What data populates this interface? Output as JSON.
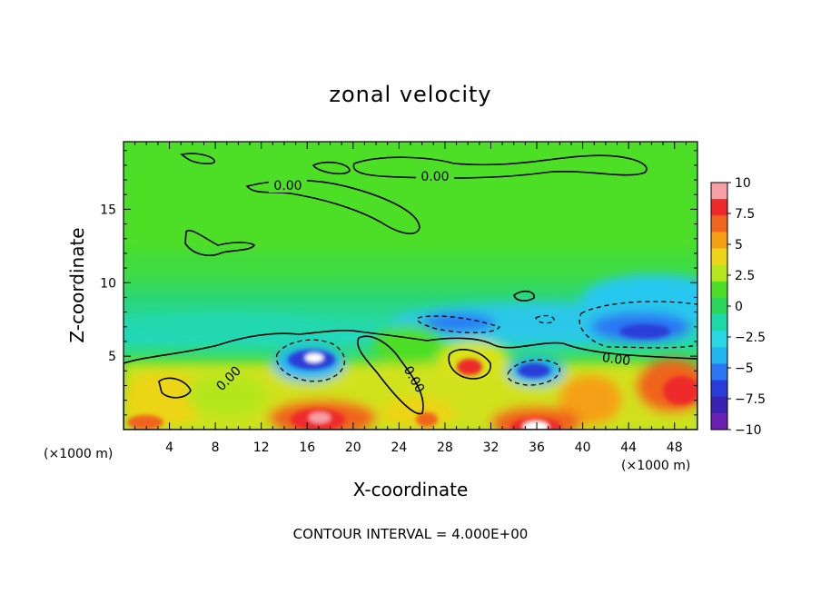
{
  "chart_data": {
    "type": "heatmap",
    "title": "zonal velocity",
    "xlabel": "X-coordinate",
    "ylabel": "Z-coordinate",
    "x_unit_label": "(×1000 m)",
    "x_ticks": [
      4,
      8,
      12,
      16,
      20,
      24,
      28,
      32,
      36,
      40,
      44,
      48
    ],
    "y_ticks": [
      5,
      10,
      15
    ],
    "xlim": [
      0,
      50
    ],
    "ylim": [
      0,
      19.6
    ],
    "colorbar": {
      "ticks": [
        "10",
        "7.5",
        "5",
        "2.5",
        "0",
        "-2.5",
        "-5",
        "-7.5",
        "-10"
      ],
      "range": [
        -10,
        10
      ],
      "colors": [
        "#f6a0a6",
        "#ee2a2a",
        "#f0641e",
        "#f5a014",
        "#ecd418",
        "#b5e61e",
        "#4ede28",
        "#2bd65a",
        "#1fd8a8",
        "#28d8e4",
        "#24b6f0",
        "#2c76f4",
        "#2a3cd8",
        "#3a22b0",
        "#6a20b0"
      ]
    },
    "contour_labels": [
      "0.00",
      "0.00",
      "0.00",
      "0.00",
      "0.00"
    ],
    "contour_interval_text": "CONTOUR INTERVAL = 4.000E+00",
    "features": [
      {
        "x": 16.5,
        "z": 5.0,
        "value": -12
      },
      {
        "x": 34.5,
        "z": 4.0,
        "value": -6
      },
      {
        "x": 46,
        "z": 6.5,
        "value": -6
      },
      {
        "x": 30,
        "z": 8,
        "value": -4
      },
      {
        "x": 16.5,
        "z": 0.9,
        "value": 10
      },
      {
        "x": 35.5,
        "z": 0.5,
        "value": 12
      },
      {
        "x": 30,
        "z": 4.3,
        "value": 8
      },
      {
        "x": 48.5,
        "z": 3,
        "value": 8
      }
    ]
  }
}
